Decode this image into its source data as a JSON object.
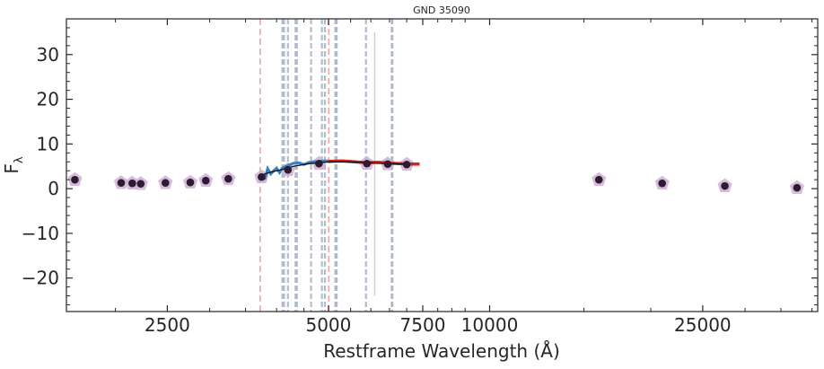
{
  "chart_data": {
    "type": "scatter",
    "title": "GND 35090",
    "xlabel": "Restframe Wavelength (Å)",
    "ylabel": "F",
    "ylabel_sub": "λ",
    "x_scale": "log",
    "xlim": [
      1620,
      41000
    ],
    "ylim": [
      -27.5,
      38
    ],
    "x_ticks": [
      2500,
      5000,
      7500,
      10000,
      25000
    ],
    "x_tick_labels": [
      "2500",
      "5000",
      "7500",
      "10000",
      "25000"
    ],
    "y_ticks": [
      -20,
      -10,
      0,
      10,
      20,
      30
    ],
    "y_tick_labels": [
      "−20",
      "−10",
      "0",
      "10",
      "20",
      "30"
    ],
    "grid": false,
    "colors": {
      "photometry_points": "#2d1b33",
      "photometry_model": "#cfb0d4",
      "blue_spectrum": "#3a7fbf",
      "red_spectrum": "#e02020",
      "model_line": "#111111",
      "red_dashed_lines": "#f4a3a3",
      "blue_gray_lines": "#a9b6c9",
      "purple_line": "#d8c6dd"
    },
    "photometry": [
      {
        "x": 1680,
        "y": 2.0
      },
      {
        "x": 2050,
        "y": 1.3
      },
      {
        "x": 2150,
        "y": 1.2
      },
      {
        "x": 2230,
        "y": 1.1
      },
      {
        "x": 2480,
        "y": 1.3
      },
      {
        "x": 2760,
        "y": 1.4
      },
      {
        "x": 2950,
        "y": 1.8
      },
      {
        "x": 3250,
        "y": 2.2
      },
      {
        "x": 3750,
        "y": 2.6
      },
      {
        "x": 4200,
        "y": 4.2
      },
      {
        "x": 4800,
        "y": 5.6
      },
      {
        "x": 5900,
        "y": 5.6
      },
      {
        "x": 6450,
        "y": 5.5
      },
      {
        "x": 7000,
        "y": 5.4
      },
      {
        "x": 16000,
        "y": 2.0
      },
      {
        "x": 21000,
        "y": 1.2
      },
      {
        "x": 27500,
        "y": 0.6
      },
      {
        "x": 37500,
        "y": 0.2
      }
    ],
    "spectrum_blue": [
      {
        "x": 3800,
        "y": 2.0
      },
      {
        "x": 3850,
        "y": 4.5
      },
      {
        "x": 3900,
        "y": 3.3
      },
      {
        "x": 3950,
        "y": 4.0
      },
      {
        "x": 4000,
        "y": 4.6
      },
      {
        "x": 4050,
        "y": 3.6
      },
      {
        "x": 4100,
        "y": 4.6
      },
      {
        "x": 4200,
        "y": 5.2
      },
      {
        "x": 4300,
        "y": 5.7
      },
      {
        "x": 4400,
        "y": 5.8
      },
      {
        "x": 4500,
        "y": 5.4
      },
      {
        "x": 4600,
        "y": 5.9
      },
      {
        "x": 4700,
        "y": 6.0
      },
      {
        "x": 4800,
        "y": 6.1
      },
      {
        "x": 4900,
        "y": 6.2
      },
      {
        "x": 5000,
        "y": 6.2
      }
    ],
    "spectrum_red": [
      {
        "x": 5000,
        "y": 6.1
      },
      {
        "x": 5300,
        "y": 6.2
      },
      {
        "x": 5600,
        "y": 6.0
      },
      {
        "x": 5900,
        "y": 5.8
      },
      {
        "x": 6200,
        "y": 5.9
      },
      {
        "x": 6500,
        "y": 5.7
      },
      {
        "x": 6800,
        "y": 5.6
      },
      {
        "x": 7100,
        "y": 5.5
      },
      {
        "x": 7400,
        "y": 5.5
      }
    ],
    "model_line": [
      {
        "x": 3780,
        "y": 3.2
      },
      {
        "x": 3900,
        "y": 3.7
      },
      {
        "x": 4100,
        "y": 4.3
      },
      {
        "x": 4300,
        "y": 5.0
      },
      {
        "x": 4600,
        "y": 5.6
      },
      {
        "x": 5000,
        "y": 6.0
      },
      {
        "x": 5500,
        "y": 6.0
      },
      {
        "x": 6000,
        "y": 5.8
      },
      {
        "x": 6500,
        "y": 5.6
      },
      {
        "x": 7000,
        "y": 5.5
      }
    ],
    "red_dashed_lines_x": [
      3727,
      5007
    ],
    "blue_gray_lines_x": [
      4102,
      4130,
      4200,
      4340,
      4365,
      4640,
      4861,
      4925,
      5150,
      5180,
      5876,
      6563,
      6583
    ],
    "purple_line": {
      "x": 6100,
      "y_start": -24,
      "y_end": 35
    }
  }
}
